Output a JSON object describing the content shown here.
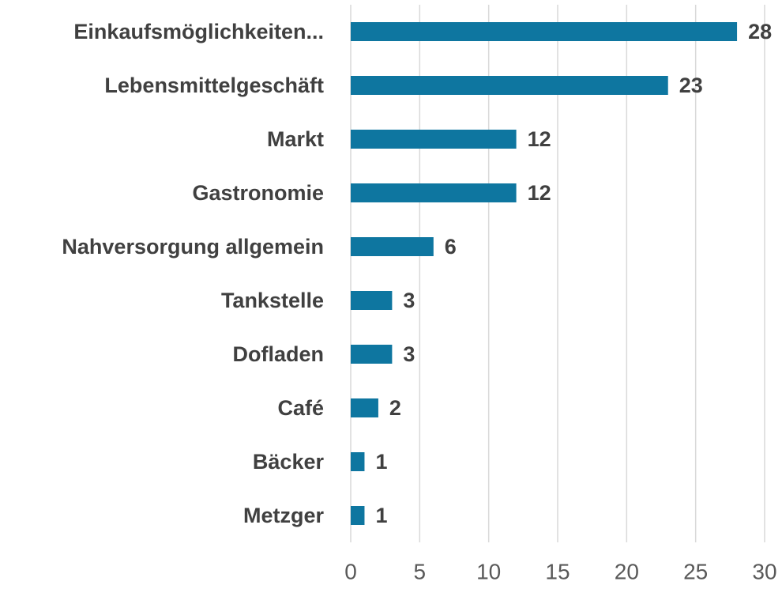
{
  "chart_data": {
    "type": "bar",
    "orientation": "horizontal",
    "categories": [
      "Einkaufsmöglichkeiten...",
      "Lebensmittelgeschäft",
      "Markt",
      "Gastronomie",
      "Nahversorgung allgemein",
      "Tankstelle",
      "Dofladen",
      "Café",
      "Bäcker",
      "Metzger"
    ],
    "values": [
      28,
      23,
      12,
      12,
      6,
      3,
      3,
      2,
      1,
      1
    ],
    "color": "#0e76a0",
    "xlim": [
      0,
      30
    ],
    "xticks": [
      0,
      5,
      10,
      15,
      20,
      25,
      30
    ],
    "grid": true
  }
}
